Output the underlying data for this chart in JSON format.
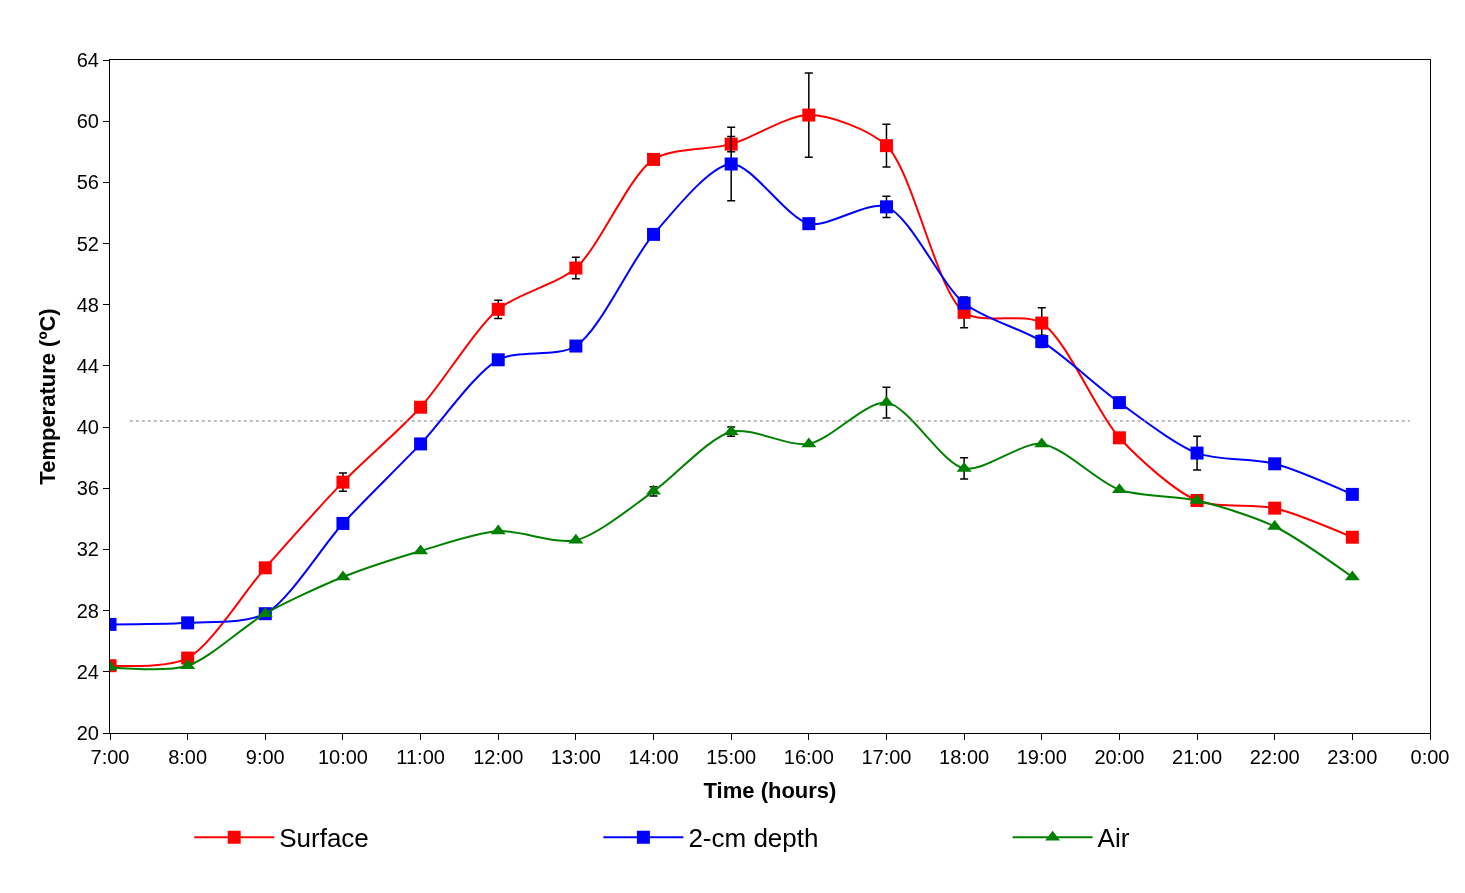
{
  "chart_data": {
    "type": "line",
    "xlabel": "Time (hours)",
    "ylabel": "Temperature (ºC)",
    "x": [
      7,
      8,
      9,
      10,
      11,
      12,
      13,
      14,
      15,
      16,
      17,
      18,
      19,
      20,
      21,
      22,
      23
    ],
    "xlim": [
      7,
      24
    ],
    "xticks": [
      {
        "value": 7,
        "label": "7:00"
      },
      {
        "value": 8,
        "label": "8:00"
      },
      {
        "value": 9,
        "label": "9:00"
      },
      {
        "value": 10,
        "label": "10:00"
      },
      {
        "value": 11,
        "label": "11:00"
      },
      {
        "value": 12,
        "label": "12:00"
      },
      {
        "value": 13,
        "label": "13:00"
      },
      {
        "value": 14,
        "label": "14:00"
      },
      {
        "value": 15,
        "label": "15:00"
      },
      {
        "value": 16,
        "label": "16:00"
      },
      {
        "value": 17,
        "label": "17:00"
      },
      {
        "value": 18,
        "label": "18:00"
      },
      {
        "value": 19,
        "label": "19:00"
      },
      {
        "value": 20,
        "label": "20:00"
      },
      {
        "value": 21,
        "label": "21:00"
      },
      {
        "value": 22,
        "label": "22:00"
      },
      {
        "value": 23,
        "label": "23:00"
      },
      {
        "value": 24,
        "label": "0:00"
      }
    ],
    "ylim": [
      20,
      64
    ],
    "yticks": [
      20,
      24,
      28,
      32,
      36,
      40,
      44,
      48,
      52,
      56,
      60,
      64
    ],
    "legend": "bottom",
    "line_style": "solid",
    "ref_lines": [
      {
        "axis": "y",
        "value": 40.4,
        "color": "#808080",
        "line_style": "dotted"
      }
    ],
    "series": [
      {
        "name": "Surface",
        "color": "#ff0000",
        "marker": "square",
        "values": [
          24.4,
          24.9,
          30.8,
          36.4,
          41.3,
          47.7,
          50.4,
          57.5,
          58.5,
          60.4,
          58.4,
          47.5,
          46.8,
          39.3,
          35.2,
          34.7,
          32.8
        ],
        "errors": [
          null,
          null,
          null,
          0.6,
          null,
          0.6,
          0.7,
          null,
          0.5,
          2.75,
          1.4,
          1.0,
          1.0,
          null,
          null,
          null,
          null
        ]
      },
      {
        "name": "2-cm depth",
        "color": "#0000ff",
        "marker": "square",
        "values": [
          27.1,
          27.2,
          27.8,
          33.7,
          38.9,
          44.4,
          45.3,
          52.6,
          57.2,
          53.3,
          54.4,
          48.1,
          45.6,
          41.6,
          38.3,
          37.6,
          35.6
        ],
        "errors": [
          null,
          null,
          null,
          null,
          null,
          null,
          null,
          null,
          2.4,
          null,
          0.7,
          null,
          0.4,
          null,
          1.1,
          null,
          null
        ]
      },
      {
        "name": "Air",
        "color": "#008000",
        "marker": "triangle",
        "values": [
          24.3,
          24.4,
          27.8,
          30.2,
          31.9,
          33.2,
          32.6,
          35.8,
          39.7,
          38.9,
          41.6,
          37.3,
          38.9,
          35.9,
          35.2,
          33.5,
          30.2
        ],
        "errors": [
          null,
          null,
          null,
          null,
          null,
          null,
          null,
          0.3,
          0.3,
          null,
          1.0,
          0.7,
          null,
          null,
          null,
          null,
          null
        ]
      }
    ]
  }
}
